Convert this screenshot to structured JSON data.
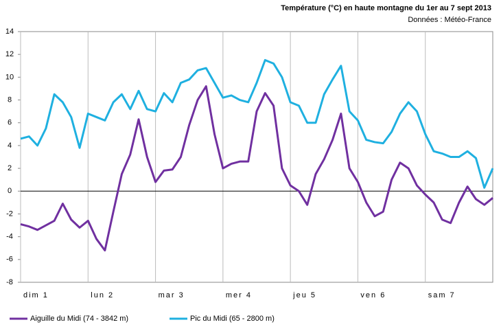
{
  "chart_data": {
    "type": "line",
    "title": "Température (°C) en haute montagne du 1er au 7 sept 2013",
    "subtitle": "Données : Météo-France",
    "x": [
      0,
      3,
      6,
      9,
      12,
      15,
      18,
      21,
      24,
      27,
      30,
      33,
      36,
      39,
      42,
      45,
      48,
      51,
      54,
      57,
      60,
      63,
      66,
      69,
      72,
      75,
      78,
      81,
      84,
      87,
      90,
      93,
      96,
      99,
      102,
      105,
      108,
      111,
      114,
      117,
      120,
      123,
      126,
      129,
      132,
      135,
      138,
      141,
      144,
      147,
      150,
      153,
      156,
      159,
      162,
      165,
      168
    ],
    "series": [
      {
        "name": "Aiguille du Midi (74 - 3842 m)",
        "color": "#7030a0",
        "values": [
          -2.9,
          -3.1,
          -3.4,
          -3.0,
          -2.6,
          -1.1,
          -2.5,
          -3.2,
          -2.6,
          -4.2,
          -5.2,
          -1.8,
          1.5,
          3.2,
          6.3,
          3.0,
          0.8,
          1.8,
          1.9,
          3.0,
          5.8,
          8.0,
          9.2,
          5.0,
          2.0,
          2.4,
          2.6,
          2.6,
          7.0,
          8.6,
          7.5,
          2.0,
          0.5,
          0.0,
          -1.2,
          1.5,
          2.8,
          4.5,
          6.8,
          2.0,
          0.8,
          -1.0,
          -2.2,
          -1.8,
          1.0,
          2.5,
          2.0,
          0.5,
          -0.3,
          -1.0,
          -2.5,
          -2.8,
          -1.0,
          0.4,
          -0.7,
          -1.2,
          -0.6
        ]
      },
      {
        "name": "Pic du Midi (65 - 2800 m)",
        "color": "#1fb0e0",
        "values": [
          4.6,
          4.8,
          4.0,
          5.5,
          8.5,
          7.8,
          6.5,
          3.8,
          6.8,
          6.5,
          6.2,
          7.8,
          8.5,
          7.2,
          8.8,
          7.2,
          7.0,
          8.6,
          7.8,
          9.5,
          9.8,
          10.6,
          10.8,
          9.5,
          8.2,
          8.4,
          8.0,
          7.8,
          9.5,
          11.5,
          11.2,
          10.0,
          7.8,
          7.5,
          6.0,
          6.0,
          8.5,
          9.8,
          11.0,
          7.0,
          6.2,
          4.5,
          4.3,
          4.2,
          5.2,
          6.8,
          7.8,
          7.0,
          5.0,
          3.5,
          3.3,
          3.0,
          3.0,
          3.5,
          2.9,
          0.3,
          2.0
        ]
      }
    ],
    "xlim": [
      0,
      168
    ],
    "xticks": [
      {
        "value": 0,
        "label": "dim 1"
      },
      {
        "value": 24,
        "label": "lun 2"
      },
      {
        "value": 48,
        "label": "mar 3"
      },
      {
        "value": 72,
        "label": "mer 4"
      },
      {
        "value": 96,
        "label": "jeu 5"
      },
      {
        "value": 120,
        "label": "ven 6"
      },
      {
        "value": 144,
        "label": "sam 7"
      }
    ],
    "ylim": [
      -8,
      14
    ],
    "yticks": [
      -8,
      -6,
      -4,
      -2,
      0,
      2,
      4,
      6,
      8,
      10,
      12,
      14
    ],
    "grid": "x",
    "legend": "bottom"
  }
}
